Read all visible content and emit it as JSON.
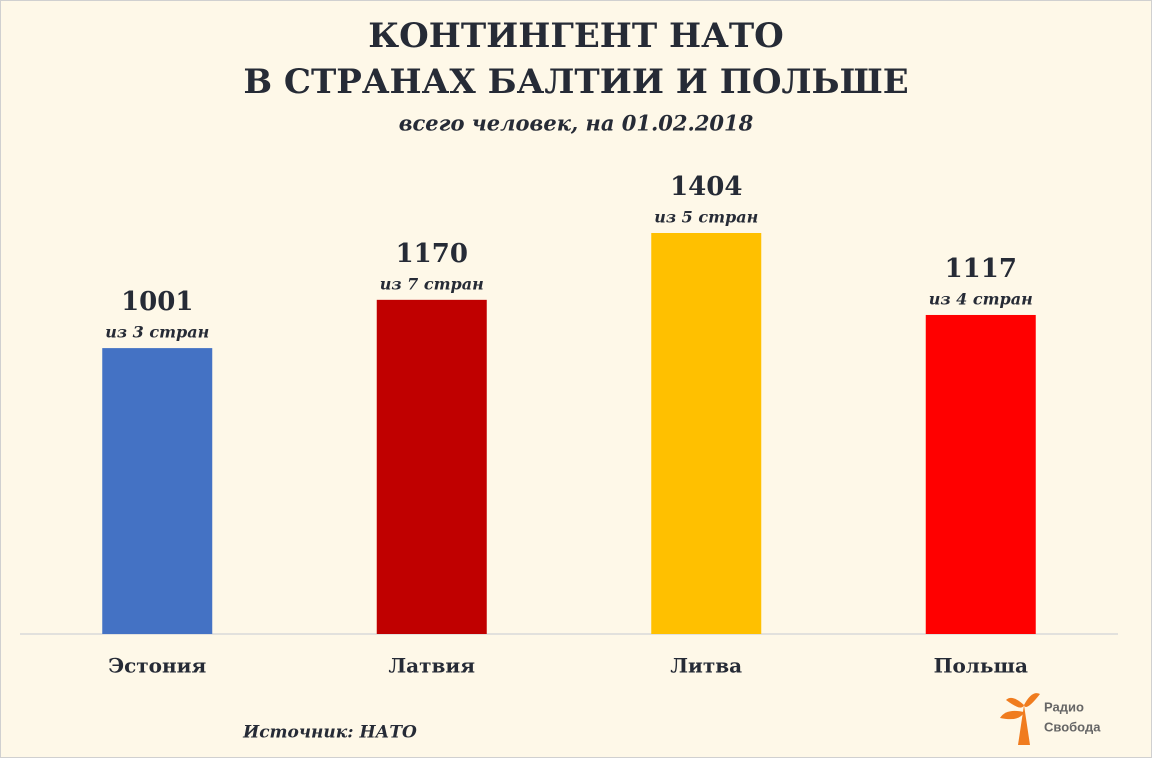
{
  "chart_data": {
    "type": "bar",
    "title": [
      "КОНТИНГЕНТ НАТО",
      "В СТРАНАХ БАЛТИИ И ПОЛЬШЕ"
    ],
    "subtitle": "всего человек, на 01.02.2018",
    "categories": [
      "Эстония",
      "Латвия",
      "Литва",
      "Польша"
    ],
    "values": [
      1001,
      1170,
      1404,
      1117
    ],
    "annotations": [
      "из 3 стран",
      "из 7 стран",
      "из 5 стран",
      "из 4 стран"
    ],
    "colors": [
      "#4472c4",
      "#c00000",
      "#ffc000",
      "#ff0000"
    ],
    "source": "Источник: НАТО",
    "logo": [
      "Радио",
      "Свобода"
    ]
  }
}
